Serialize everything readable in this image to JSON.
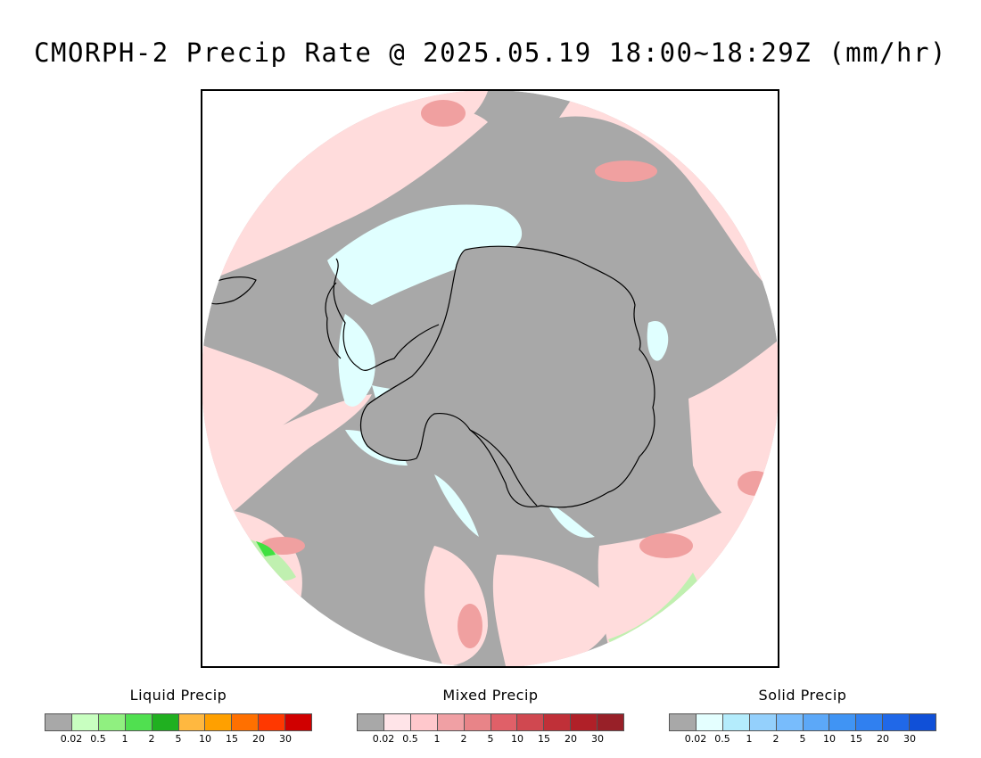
{
  "title": "CMORPH-2 Precip Rate @ 2025.05.19 18:00~18:29Z (mm/hr)",
  "map": {
    "projection": "south polar stereographic",
    "region": "Antarctica and Southern Ocean",
    "colors": {
      "no_precip": "#a8a8a8",
      "mixed_light": "#ffdcdc",
      "mixed_medium": "#f0a0a0",
      "mixed_heavy": "#d86a6a",
      "solid_light": "#e0ffff",
      "liquid_light": "#c0f0b0",
      "liquid_medium": "#40e040",
      "coastline": "#000000"
    }
  },
  "legends": [
    {
      "title": "Liquid Precip",
      "colors": [
        "#a8a8a8",
        "#c8ffc0",
        "#90f080",
        "#50e050",
        "#20b020",
        "#ffb840",
        "#ffa000",
        "#ff7000",
        "#ff3800",
        "#d00000"
      ],
      "ticks": [
        "0.02",
        "0.5",
        "1",
        "2",
        "5",
        "10",
        "15",
        "20",
        "30"
      ]
    },
    {
      "title": "Mixed Precip",
      "colors": [
        "#a8a8a8",
        "#ffe4e8",
        "#ffc8cc",
        "#f0a0a4",
        "#e88488",
        "#e06068",
        "#d04850",
        "#c03038",
        "#b02028",
        "#982028"
      ],
      "ticks": [
        "0.02",
        "0.5",
        "1",
        "2",
        "5",
        "10",
        "15",
        "20",
        "30"
      ]
    },
    {
      "title": "Solid Precip",
      "colors": [
        "#a8a8a8",
        "#e4ffff",
        "#b4ecfc",
        "#94d0fc",
        "#78bcfc",
        "#5ca8f8",
        "#4094f4",
        "#3080f0",
        "#2068e8",
        "#1050d8"
      ],
      "ticks": [
        "0.02",
        "0.5",
        "1",
        "2",
        "5",
        "10",
        "15",
        "20",
        "30"
      ]
    }
  ]
}
